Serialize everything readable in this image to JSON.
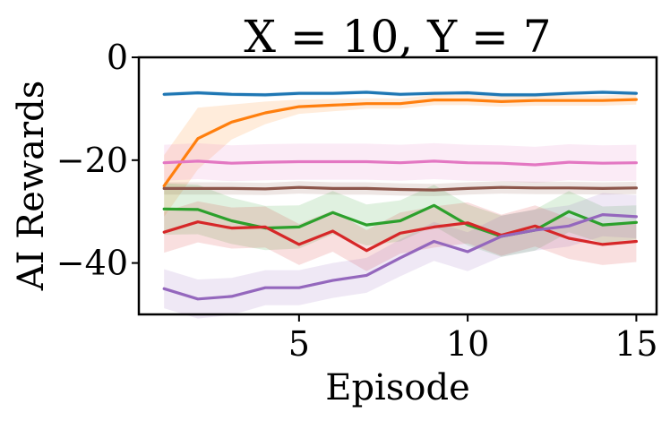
{
  "chart_data": {
    "type": "line",
    "title": "X = 10, Y = 7",
    "xlabel": "Episode",
    "ylabel": "AI Rewards",
    "xlim": [
      0.25,
      15.6
    ],
    "ylim": [
      -50,
      0
    ],
    "xticks": [
      5,
      10,
      15
    ],
    "xtick_labels": [
      "5",
      "10",
      "15"
    ],
    "yticks": [
      0,
      -20,
      -40
    ],
    "ytick_labels": [
      "0",
      "−20",
      "−40"
    ],
    "grid": false,
    "x": [
      1,
      2,
      3,
      4,
      5,
      6,
      7,
      8,
      9,
      10,
      11,
      12,
      13,
      14,
      15
    ],
    "series": [
      {
        "name": "blue",
        "color": "#1f77b4",
        "values": [
          -7.2,
          -6.9,
          -7.2,
          -7.3,
          -7.0,
          -7.0,
          -6.8,
          -7.2,
          -7.0,
          -6.9,
          -7.3,
          -7.3,
          -7.0,
          -6.8,
          -7.0
        ],
        "band": 0.4
      },
      {
        "name": "orange",
        "color": "#ff7f0e",
        "values": [
          -25.0,
          -15.8,
          -12.6,
          -10.8,
          -9.6,
          -9.3,
          -9.0,
          -9.0,
          -8.3,
          -8.3,
          -8.6,
          -8.4,
          -8.4,
          -8.4,
          -8.2
        ],
        "band": [
          6.0,
          6.0,
          3.4,
          2.2,
          1.4,
          1.2,
          1.0,
          1.0,
          1.0,
          1.0,
          1.0,
          1.0,
          1.0,
          1.0,
          1.0
        ]
      },
      {
        "name": "pink",
        "color": "#e377c2",
        "values": [
          -20.5,
          -20.2,
          -20.6,
          -20.4,
          -20.3,
          -20.3,
          -20.3,
          -20.5,
          -20.2,
          -20.5,
          -20.6,
          -20.9,
          -20.4,
          -20.6,
          -20.5
        ],
        "band": 3.5
      },
      {
        "name": "brown",
        "color": "#8c564b",
        "values": [
          -25.5,
          -25.5,
          -25.5,
          -25.6,
          -25.3,
          -25.5,
          -25.5,
          -25.7,
          -25.8,
          -25.5,
          -25.3,
          -25.4,
          -25.4,
          -25.5,
          -25.4
        ],
        "band": 1.2
      },
      {
        "name": "green",
        "color": "#2ca02c",
        "values": [
          -29.5,
          -29.6,
          -31.8,
          -33.2,
          -33.0,
          -30.2,
          -32.6,
          -31.8,
          -28.8,
          -32.6,
          -34.8,
          -33.6,
          -30.0,
          -32.6,
          -32.1
        ],
        "band": [
          5.0,
          4.8,
          4.5,
          4.3,
          4.2,
          4.2,
          4.0,
          4.0,
          4.0,
          4.0,
          4.0,
          4.0,
          4.0,
          3.6,
          3.3
        ]
      },
      {
        "name": "red",
        "color": "#d62728",
        "values": [
          -34.0,
          -32.0,
          -33.2,
          -33.0,
          -36.4,
          -33.8,
          -37.6,
          -34.2,
          -33.0,
          -32.2,
          -34.6,
          -32.8,
          -35.2,
          -36.4,
          -35.8
        ],
        "band": 4.0
      },
      {
        "name": "purple",
        "color": "#9467bd",
        "values": [
          -45.0,
          -47.0,
          -46.5,
          -44.8,
          -44.8,
          -43.4,
          -42.4,
          -39.0,
          -35.8,
          -37.8,
          -34.8,
          -33.6,
          -32.8,
          -30.6,
          -31.0
        ],
        "band": [
          3.8,
          3.8,
          3.6,
          3.4,
          3.4,
          3.4,
          3.4,
          3.6,
          3.8,
          3.8,
          4.0,
          4.0,
          4.0,
          4.2,
          4.2
        ]
      }
    ]
  }
}
